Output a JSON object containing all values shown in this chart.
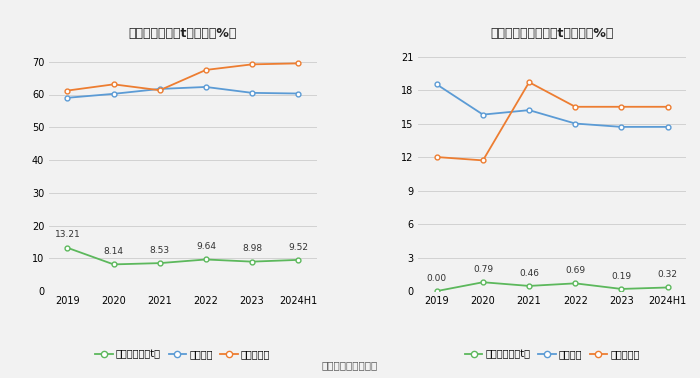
{
  "left_chart": {
    "title": "近年来资产负巫t率情况（%）",
    "xticklabels": [
      "2019",
      "2020",
      "2021",
      "2022",
      "2023",
      "2024H1"
    ],
    "company": [
      13.21,
      8.14,
      8.53,
      9.64,
      8.98,
      9.52
    ],
    "industry_avg": [
      59.0,
      60.2,
      61.7,
      62.3,
      60.5,
      60.3
    ],
    "industry_median": [
      61.2,
      63.1,
      61.3,
      67.5,
      69.2,
      69.5
    ],
    "ylim": [
      0,
      75
    ],
    "yticks": [
      0,
      10,
      20,
      30,
      40,
      50,
      60,
      70
    ],
    "company_label": "公司资产负巫t率",
    "avg_label": "行业均値",
    "median_label": "行业中位数"
  },
  "right_chart": {
    "title": "近年来有息资产负巫t率情况（%）",
    "xticklabels": [
      "2019",
      "2020",
      "2021",
      "2022",
      "2023",
      "2024H1"
    ],
    "company": [
      0.0,
      0.79,
      0.46,
      0.69,
      0.19,
      0.32
    ],
    "industry_avg": [
      18.5,
      15.8,
      16.2,
      15.0,
      14.7,
      14.7
    ],
    "industry_median": [
      12.0,
      11.7,
      18.7,
      16.5,
      16.5,
      16.5
    ],
    "ylim": [
      0,
      22
    ],
    "yticks": [
      0,
      3,
      6,
      9,
      12,
      15,
      18,
      21
    ],
    "company_label": "有息资产负巫t率",
    "avg_label": "行业均値",
    "median_label": "行业中位数"
  },
  "footnote": "数据来源：恒生聚源",
  "colors": {
    "company": "#5cb85c",
    "avg": "#5b9bd5",
    "median": "#ed7d31"
  },
  "bg_color": "#f2f2f2"
}
